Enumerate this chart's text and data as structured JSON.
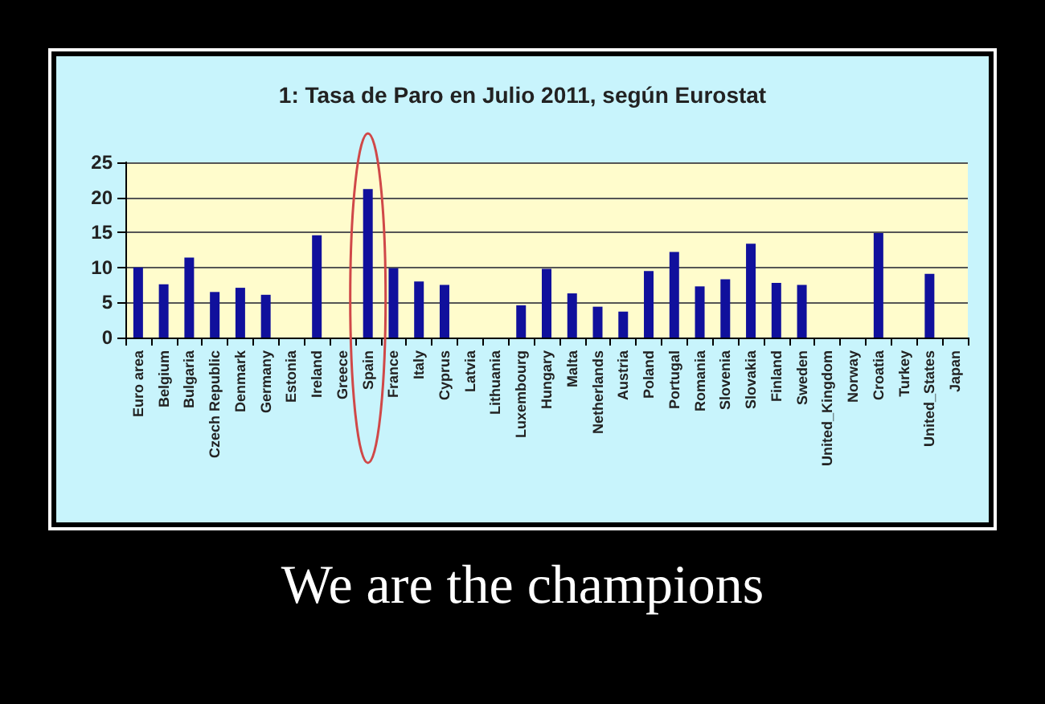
{
  "chart_data": {
    "type": "bar",
    "title": "1: Tasa de Paro en Julio 2011, según Eurostat",
    "categories": [
      "Euro area",
      "Belgium",
      "Bulgaria",
      "Czech Republic",
      "Denmark",
      "Germany",
      "Estonia",
      "Ireland",
      "Greece",
      "Spain",
      "France",
      "Italy",
      "Cyprus",
      "Latvia",
      "Lithuania",
      "Luxembourg",
      "Hungary",
      "Malta",
      "Netherlands",
      "Austria",
      "Poland",
      "Portugal",
      "Romania",
      "Slovenia",
      "Slovakia",
      "Finland",
      "Sweden",
      "United_Kingdom",
      "Norway",
      "Croatia",
      "Turkey",
      "United_States",
      "Japan"
    ],
    "values": [
      10,
      7.6,
      11.4,
      6.5,
      7.1,
      6.1,
      null,
      14.6,
      null,
      21.2,
      9.9,
      8.0,
      7.5,
      null,
      null,
      4.6,
      9.8,
      6.3,
      4.4,
      3.7,
      9.5,
      12.2,
      7.3,
      8.3,
      13.4,
      7.8,
      7.5,
      null,
      null,
      14.9,
      null,
      9.1,
      null
    ],
    "color": "#10109c",
    "ylim": [
      0,
      25
    ],
    "yticks": [
      0,
      5,
      10,
      15,
      20,
      25
    ],
    "grid": "y",
    "annotations": [
      "We are the champions"
    ]
  }
}
